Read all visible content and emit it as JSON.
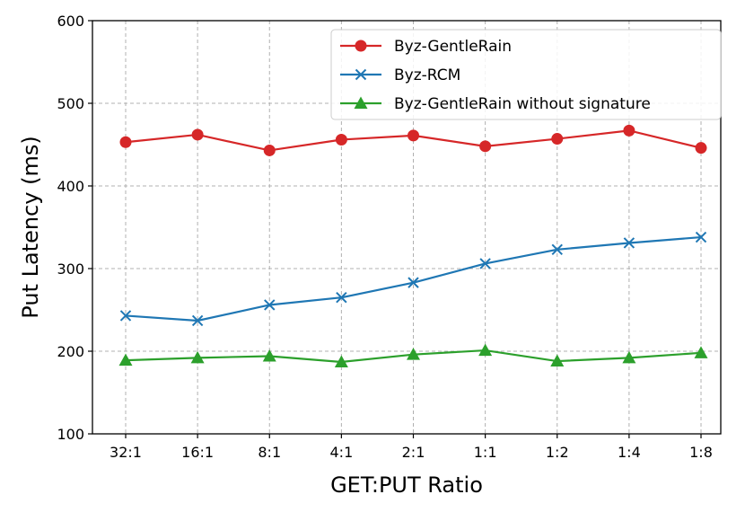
{
  "chart_data": {
    "type": "line",
    "xlabel": "GET:PUT Ratio",
    "ylabel": "Put Latency (ms)",
    "categories": [
      "32:1",
      "16:1",
      "8:1",
      "4:1",
      "2:1",
      "1:1",
      "1:2",
      "1:4",
      "1:8"
    ],
    "ylim": [
      100,
      600
    ],
    "yticks": [
      100,
      200,
      300,
      400,
      500,
      600
    ],
    "grid": true,
    "legend_position": "top-right",
    "series": [
      {
        "name": "Byz-GentleRain",
        "color": "#d62728",
        "marker": "circle",
        "values": [
          453,
          462,
          443,
          456,
          461,
          448,
          457,
          467,
          446
        ]
      },
      {
        "name": "Byz-RCM",
        "color": "#1f77b4",
        "marker": "x",
        "values": [
          243,
          237,
          256,
          265,
          283,
          306,
          323,
          331,
          338
        ]
      },
      {
        "name": "Byz-GentleRain without signature",
        "color": "#2ca02c",
        "marker": "triangle",
        "values": [
          189,
          192,
          194,
          187,
          196,
          201,
          188,
          192,
          198
        ]
      }
    ]
  }
}
